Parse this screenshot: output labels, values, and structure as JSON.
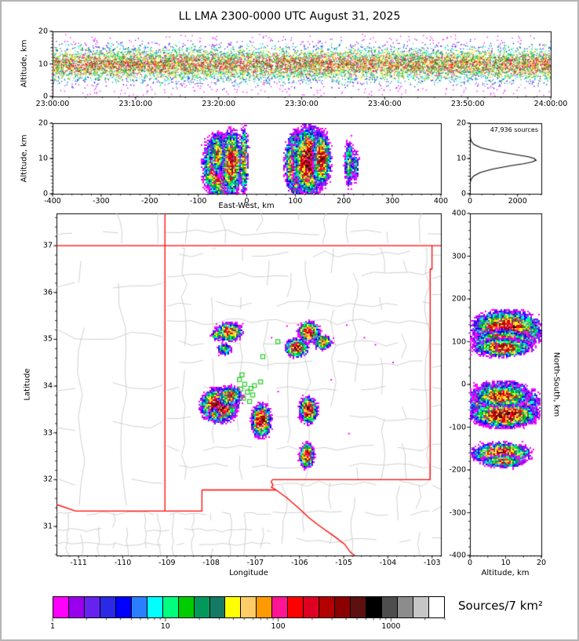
{
  "title": "LL LMA 2300-0000 UTC August 31, 2025",
  "labels": {
    "altitude_axis": "Altitude, km",
    "east_west_axis": "East-West, km",
    "longitude_axis": "Longitude",
    "latitude_axis": "Latitude",
    "north_south_axis": "North-South, km",
    "source_count": "47,936 sources",
    "colorbar_label": "Sources/7 km²"
  },
  "chart_data": [
    {
      "id": "time_height",
      "type": "scatter",
      "ylabel": "Altitude, km",
      "xtick_labels": [
        "23:00:00",
        "23:10:00",
        "23:20:00",
        "23:30:00",
        "23:40:00",
        "23:50:00",
        "24:00:00"
      ],
      "x_span_seconds": 3600,
      "ylim": [
        0,
        20
      ],
      "yticks": [
        0,
        10,
        20
      ],
      "band": {
        "center_km": 10,
        "sigma_km": 2.6,
        "n_points": 12000,
        "peak_density": 55
      }
    },
    {
      "id": "ew_height",
      "type": "scatter-density",
      "xlabel": "East-West, km",
      "ylabel": "Altitude, km",
      "xlim": [
        -400,
        400
      ],
      "ylim": [
        0,
        20
      ],
      "xticks": [
        -400,
        -300,
        -200,
        -100,
        0,
        100,
        200,
        300,
        400
      ],
      "yticks": [
        0,
        10,
        20
      ],
      "cluster_format": "[ew_km, alt_km, sigma_ew_km, sigma_alt_km, peak_sources]",
      "clusters": [
        [
          -55,
          8,
          11,
          2.8,
          300
        ],
        [
          -33,
          9,
          7,
          3,
          160
        ],
        [
          -63,
          11.5,
          5,
          2,
          80
        ],
        [
          -8,
          9.5,
          3,
          3.2,
          70
        ],
        [
          103,
          9,
          8,
          2.8,
          260
        ],
        [
          127,
          9.5,
          10,
          3,
          320
        ],
        [
          152,
          10,
          6,
          2.5,
          180
        ],
        [
          210,
          9,
          4,
          2.5,
          18
        ],
        [
          222,
          8,
          3,
          2,
          6
        ]
      ]
    },
    {
      "id": "altitude_histogram",
      "type": "line",
      "annotation": "47,936 sources",
      "xlim": [
        0,
        3000
      ],
      "xticks": [
        0,
        2000
      ],
      "ylim": [
        0,
        20
      ],
      "yticks": [
        0,
        10,
        20
      ],
      "profile_alt_km": [
        0,
        2,
        3,
        4,
        5,
        6,
        7,
        8,
        8.5,
        9,
        9.5,
        10,
        10.5,
        11,
        12,
        13,
        14,
        15,
        16,
        17,
        20
      ],
      "profile_counts": [
        0,
        0,
        10,
        40,
        150,
        420,
        950,
        1750,
        2250,
        2600,
        2780,
        2700,
        2450,
        2000,
        1150,
        480,
        160,
        50,
        12,
        0,
        0
      ]
    },
    {
      "id": "plan_view",
      "type": "map-density",
      "xlabel": "Longitude",
      "ylabel": "Latitude",
      "xlim": [
        -111.5,
        -102.8
      ],
      "ylim": [
        30.38,
        37.69
      ],
      "xticks": [
        -111,
        -110,
        -109,
        -108,
        -107,
        -106,
        -105,
        -104,
        -103
      ],
      "yticks": [
        31,
        32,
        33,
        34,
        35,
        36,
        37
      ],
      "state_border_color": "#ff0000",
      "county_line_color": "#c4c4c4",
      "flash_marker_color": "#22cc22",
      "state_borders": [
        [
          [
            -111.5,
            37.0
          ],
          [
            -102.8,
            37.0
          ]
        ],
        [
          [
            -109.045,
            37.69
          ],
          [
            -109.045,
            31.33
          ]
        ],
        [
          [
            -103.043,
            32.0
          ],
          [
            -103.043,
            36.5
          ],
          [
            -103.002,
            36.5
          ],
          [
            -103.002,
            37.0
          ]
        ],
        [
          [
            -103.043,
            32.0
          ],
          [
            -106.618,
            32.0
          ]
        ],
        [
          [
            -106.618,
            32.0
          ],
          [
            -106.64,
            31.95
          ],
          [
            -106.6,
            31.89
          ],
          [
            -106.635,
            31.84
          ],
          [
            -106.53,
            31.78
          ]
        ],
        [
          [
            -106.53,
            31.78
          ],
          [
            -108.208,
            31.78
          ]
        ],
        [
          [
            -108.208,
            31.78
          ],
          [
            -108.208,
            31.33
          ],
          [
            -109.045,
            31.33
          ]
        ],
        [
          [
            -109.045,
            31.33
          ],
          [
            -111.07,
            31.33
          ],
          [
            -111.5,
            31.47
          ]
        ],
        [
          [
            -106.53,
            31.78
          ],
          [
            -106.3,
            31.62
          ],
          [
            -106.05,
            31.42
          ],
          [
            -105.78,
            31.18
          ],
          [
            -105.5,
            30.98
          ],
          [
            -105.2,
            30.78
          ],
          [
            -104.98,
            30.62
          ],
          [
            -104.85,
            30.45
          ],
          [
            -104.75,
            30.38
          ]
        ]
      ],
      "county_regions": [
        {
          "x0": -109.0,
          "x1": -103.06,
          "y0": 32.0,
          "y1": 36.95,
          "dx": 0.55,
          "dy": 0.52,
          "seed": 11
        },
        {
          "x0": -111.5,
          "x1": -109.1,
          "y0": 31.45,
          "y1": 36.95,
          "dx": 0.85,
          "dy": 0.95,
          "seed": 21
        },
        {
          "x0": -111.5,
          "x1": -102.8,
          "y0": 37.05,
          "y1": 37.69,
          "dx": 0.7,
          "dy": 0.5,
          "seed": 31
        },
        {
          "x0": -103.0,
          "x1": -102.8,
          "y0": 30.4,
          "y1": 36.9,
          "dx": 0.5,
          "dy": 0.5,
          "seed": 41
        },
        {
          "x0": -106.6,
          "x1": -103.06,
          "y0": 30.38,
          "y1": 31.95,
          "dx": 0.52,
          "dy": 0.5,
          "seed": 51
        },
        {
          "x0": -111.5,
          "x1": -106.65,
          "y0": 30.38,
          "y1": 31.28,
          "dx": 0.34,
          "dy": 0.3,
          "seed": 61
        }
      ],
      "cluster_format": "[lon_deg, lat_deg, sigma_lon_deg, sigma_lat_deg, peak_sources]",
      "clusters": [
        [
          -107.62,
          35.18,
          0.1,
          0.065,
          110
        ],
        [
          -107.9,
          35.1,
          0.05,
          0.04,
          25
        ],
        [
          -105.8,
          35.17,
          0.08,
          0.07,
          170
        ],
        [
          -105.5,
          34.96,
          0.07,
          0.05,
          80
        ],
        [
          -106.08,
          34.84,
          0.08,
          0.065,
          210
        ],
        [
          -107.72,
          34.8,
          0.055,
          0.045,
          35
        ],
        [
          -107.85,
          33.6,
          0.13,
          0.11,
          360
        ],
        [
          -107.6,
          33.8,
          0.09,
          0.07,
          90
        ],
        [
          -107.95,
          33.4,
          0.05,
          0.05,
          40
        ],
        [
          -106.88,
          33.28,
          0.07,
          0.11,
          260
        ],
        [
          -105.82,
          33.5,
          0.065,
          0.09,
          230
        ],
        [
          -105.86,
          32.53,
          0.055,
          0.085,
          150
        ]
      ],
      "specks": [
        [
          -104.95,
          35.32
        ],
        [
          -104.55,
          35.05
        ],
        [
          -104.3,
          34.9
        ],
        [
          -105.3,
          34.15
        ],
        [
          -106.5,
          33.9
        ],
        [
          -104.9,
          33.0
        ],
        [
          -107.3,
          35.35
        ],
        [
          -106.3,
          35.3
        ],
        [
          -103.9,
          34.52
        ],
        [
          -106.65,
          35.05
        ]
      ],
      "green_squares": [
        [
          -106.49,
          34.95
        ],
        [
          -106.83,
          34.63
        ],
        [
          -107.36,
          34.14
        ],
        [
          -107.24,
          34.04
        ],
        [
          -107.33,
          33.94
        ],
        [
          -107.18,
          33.87
        ],
        [
          -107.06,
          33.81
        ],
        [
          -107.27,
          33.74
        ],
        [
          -107.13,
          33.67
        ],
        [
          -107.02,
          34.01
        ],
        [
          -106.88,
          34.09
        ],
        [
          -107.3,
          34.24
        ],
        [
          -107.1,
          33.95
        ]
      ]
    },
    {
      "id": "ns_height",
      "type": "scatter-density",
      "xlabel": "Altitude, km",
      "ylabel": "North-South, km",
      "xlim": [
        0,
        20
      ],
      "ylim": [
        -400,
        400
      ],
      "xticks": [
        0,
        10,
        20
      ],
      "yticks": [
        400,
        300,
        200,
        100,
        0,
        -100,
        -200,
        -300,
        -400
      ],
      "cluster_format": "[alt_km, ns_km, sigma_alt_km, sigma_ns_km, peak_sources]",
      "clusters": [
        [
          10,
          128,
          3,
          14,
          280
        ],
        [
          9,
          105,
          2.6,
          8,
          160
        ],
        [
          9,
          88,
          2.6,
          7,
          140
        ],
        [
          9,
          -45,
          3,
          16,
          380
        ],
        [
          9.5,
          -70,
          2.8,
          9,
          260
        ],
        [
          8.5,
          -25,
          2.5,
          8,
          150
        ],
        [
          8.5,
          -160,
          2.6,
          8,
          170
        ],
        [
          9,
          -178,
          2,
          5,
          80
        ]
      ]
    }
  ],
  "colorbar": {
    "palette": [
      "#ff00ff",
      "#9900ee",
      "#6622ee",
      "#2a2ae6",
      "#0000ff",
      "#2a7fff",
      "#00ffff",
      "#00ff7f",
      "#00cc00",
      "#00995c",
      "#147a66",
      "#ffff00",
      "#ffcc66",
      "#ff9900",
      "#ff1493",
      "#ff0000",
      "#dd0022",
      "#b30000",
      "#8b0000",
      "#5c1010",
      "#000000",
      "#4d4d4d",
      "#8c8c8c",
      "#c6c6c6",
      "#ffffff"
    ],
    "scale_max": 3000,
    "tick_values": [
      1,
      10,
      100,
      1000
    ],
    "tick_labels": [
      "1",
      "10",
      "100",
      "1000"
    ],
    "label": "Sources/7 km²"
  }
}
